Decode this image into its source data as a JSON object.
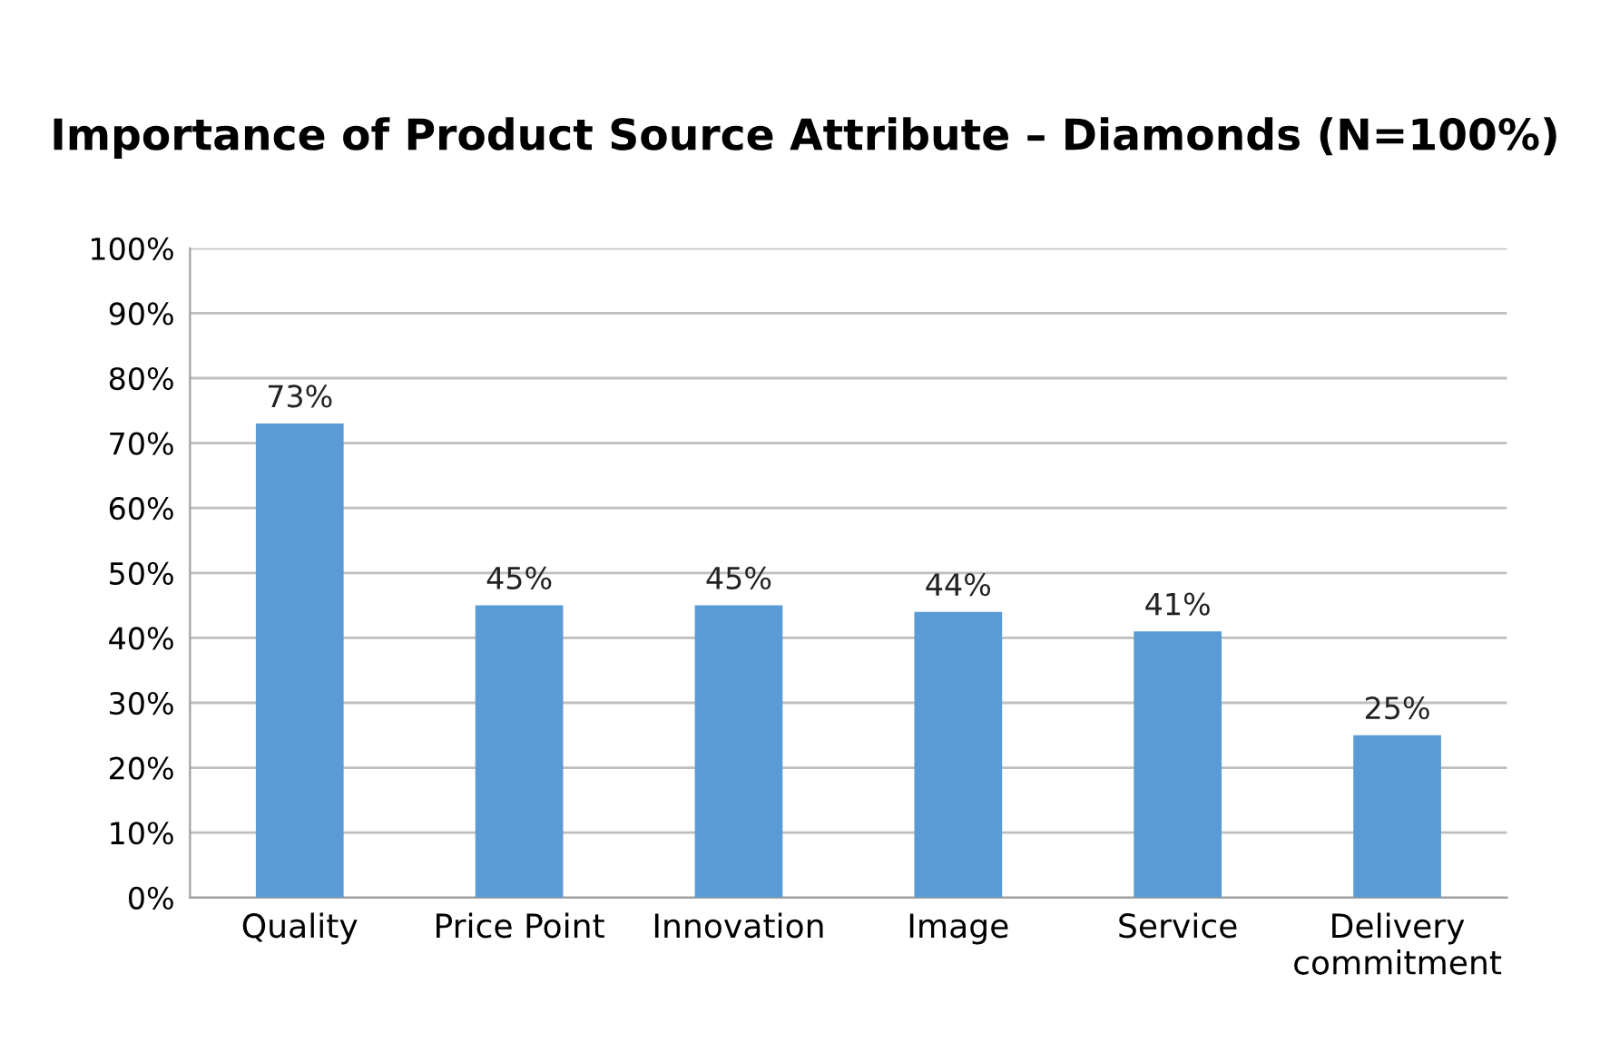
{
  "chart_data": {
    "type": "bar",
    "title": "Importance of Product Source Attribute – Diamonds (N=100%)",
    "categories": [
      "Quality",
      "Price Point",
      "Innovation",
      "Image",
      "Service",
      "Delivery\ncommitment"
    ],
    "values": [
      73,
      45,
      45,
      44,
      41,
      25
    ],
    "value_labels": [
      "73%",
      "45%",
      "45%",
      "44%",
      "41%",
      "25%"
    ],
    "color": "#5b9bd5",
    "ylim": [
      0,
      100
    ],
    "yticks": [
      {
        "value": 0,
        "label": "0%"
      },
      {
        "value": 10,
        "label": "10%"
      },
      {
        "value": 20,
        "label": "20%"
      },
      {
        "value": 30,
        "label": "30%"
      },
      {
        "value": 40,
        "label": "40%"
      },
      {
        "value": 50,
        "label": "50%"
      },
      {
        "value": 60,
        "label": "60%"
      },
      {
        "value": 70,
        "label": "70%"
      },
      {
        "value": 80,
        "label": "80%"
      },
      {
        "value": 90,
        "label": "90%"
      },
      {
        "value": 100,
        "label": "100%"
      }
    ],
    "grid": "y"
  }
}
